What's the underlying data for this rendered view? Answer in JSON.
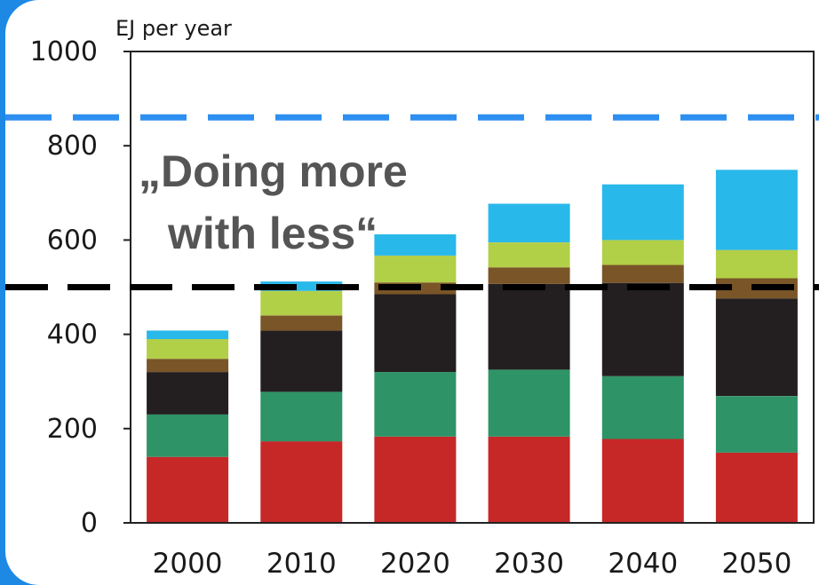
{
  "chart_data": {
    "type": "bar",
    "stacked": true,
    "categories": [
      "2000",
      "2010",
      "2020",
      "2030",
      "2040",
      "2050"
    ],
    "ylabel": "EJ per year",
    "ylim": [
      0,
      1000
    ],
    "yticks": [
      "0",
      "200",
      "400",
      "600",
      "800",
      "1000"
    ],
    "grid": false,
    "series": [
      {
        "color": "#c62828",
        "values": [
          140,
          173,
          183,
          183,
          178,
          149
        ]
      },
      {
        "color": "#2e9467",
        "values": [
          90,
          105,
          137,
          142,
          133,
          120
        ]
      },
      {
        "color": "#231f20",
        "values": [
          90,
          130,
          165,
          182,
          198,
          207
        ]
      },
      {
        "color": "#7a5528",
        "values": [
          28,
          32,
          25,
          35,
          38,
          43
        ]
      },
      {
        "color": "#b2cf48",
        "values": [
          42,
          52,
          57,
          53,
          53,
          60
        ]
      },
      {
        "color": "#29b8ea",
        "values": [
          18,
          20,
          45,
          82,
          118,
          170
        ]
      }
    ],
    "reference_lines": [
      {
        "value": 860,
        "color": "#2e8ff0",
        "style": "dashed"
      },
      {
        "value": 500,
        "color": "#000000",
        "style": "dashed"
      }
    ],
    "annotation": {
      "line1": "„Doing more",
      "line2": "with less“",
      "color": "#555555"
    }
  }
}
